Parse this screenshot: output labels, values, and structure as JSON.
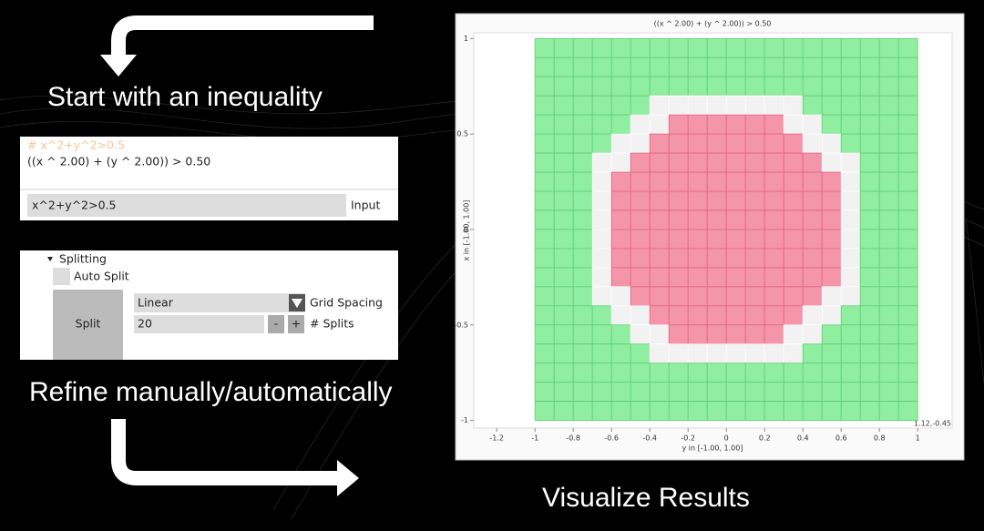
{
  "steps": {
    "start": "Start with an inequality",
    "refine": "Refine manually/automatically",
    "visualize": "Visualize Results"
  },
  "expression_panel": {
    "comment": "# x^2+y^2>0.5",
    "parsed": "((x ^ 2.00) + (y ^ 2.00)) > 0.50",
    "input_value": "x^2+y^2>0.5",
    "input_label": "Input"
  },
  "split_panel": {
    "section": "Splitting",
    "auto_split": "Auto Split",
    "split_button": "Split",
    "spacing_value": "Linear",
    "spacing_label": "Grid Spacing",
    "splits_value": "20",
    "decrement": "-",
    "increment": "+",
    "splits_label": "# Splits"
  },
  "chart_data": {
    "type": "cell-grid",
    "title": "((x ^ 2.00) + (y ^ 2.00)) > 0.50",
    "xlabel": "y in [-1.00, 1.00]",
    "ylabel": "x in [-1.00, 1.00]",
    "cursor_readout": "1.12,-0.45",
    "xlim": [
      -1.32,
      1.18
    ],
    "ylim": [
      -1.04,
      1.03
    ],
    "xticks": [
      -1.2,
      -1,
      -0.8,
      -0.6,
      -0.4,
      -0.2,
      0,
      0.2,
      0.4,
      0.6,
      0.8,
      1
    ],
    "yticks": [
      -1,
      -0.5,
      0,
      0.5,
      1
    ],
    "cell_range": [
      -1,
      1
    ],
    "cells": [
      "GGGGGGGGGGGGGGGGGGGG",
      "GGGGGGGGGGGGGGGGGGGG",
      "GGGGGGGGGGGGGGGGGGGG",
      "GGGGGGWWWWWWWWGGGGGG",
      "GGGGGWWPPPPPPWWGGGGG",
      "GGGGWWPPPPPPPPWWGGGG",
      "GGGWWPPPPPPPPPPWWGGG",
      "GGGWPPPPPPPPPPPPWGGG",
      "GGGWPPPPPPPPPPPPWGGG",
      "GGGWPPPPPPPPPPPPWGGG",
      "GGGWPPPPPPPPPPPPWGGG",
      "GGGWPPPPPPPPPPPPWGGG",
      "GGGWPPPPPPPPPPPPWGGG",
      "GGGWWPPPPPPPPPPWWGGG",
      "GGGGWWPPPPPPPPWWGGGG",
      "GGGGGWWPPPPPPWWGGGGG",
      "GGGGGGWWWWWWWWGGGGGG",
      "GGGGGGGGGGGGGGGGGGGG",
      "GGGGGGGGGGGGGGGGGGGG",
      "GGGGGGGGGGGGGGGGGGGG"
    ],
    "cell_colors": {
      "G": "#90eea0",
      "P": "#f495aa",
      "W": "#f2f2f2"
    },
    "cell_strokes": {
      "G": "#5fcf74",
      "P": "#e2657f",
      "W": "#ffffff"
    }
  }
}
